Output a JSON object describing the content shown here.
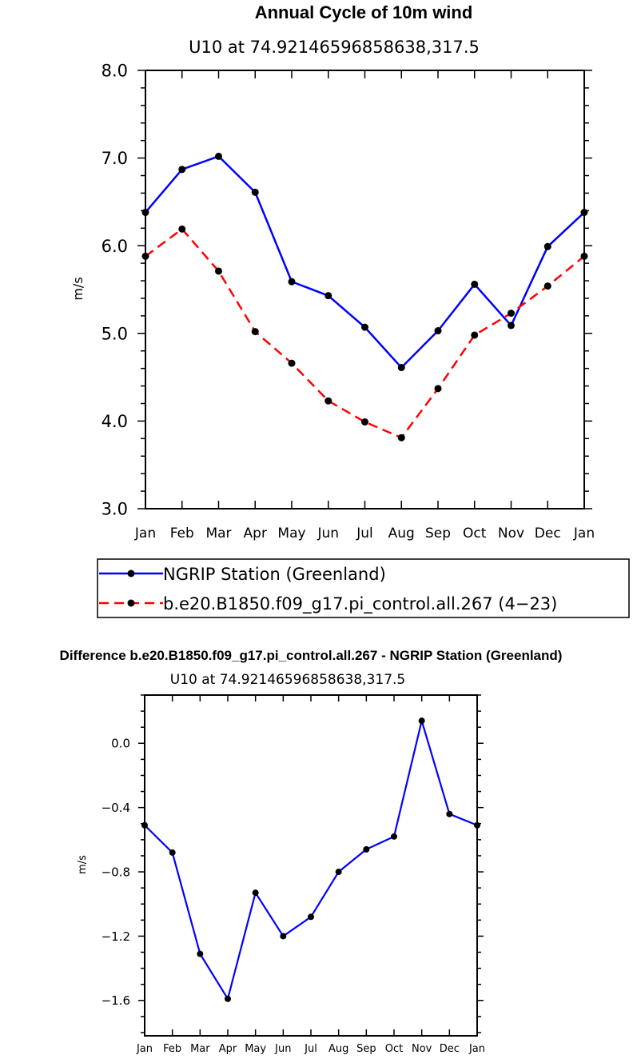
{
  "chart_data": [
    {
      "type": "line",
      "title": "Annual Cycle of 10m wind",
      "subtitle": "U10 at 74.92146596858638,317.5",
      "ylabel": "m/s",
      "xlabel": "",
      "categories": [
        "Jan",
        "Feb",
        "Mar",
        "Apr",
        "May",
        "Jun",
        "Jul",
        "Aug",
        "Sep",
        "Oct",
        "Nov",
        "Dec",
        "Jan"
      ],
      "ylim": [
        3.0,
        8.0
      ],
      "yticks": [
        3.0,
        4.0,
        5.0,
        6.0,
        7.0,
        8.0
      ],
      "ytick_labels": [
        "3.0",
        "4.0",
        "5.0",
        "6.0",
        "7.0",
        "8.0"
      ],
      "series": [
        {
          "name": "NGRIP Station (Greenland)",
          "color": "#0000ff",
          "dash": "solid",
          "values": [
            6.38,
            6.87,
            7.02,
            6.61,
            5.59,
            5.43,
            5.07,
            4.61,
            5.03,
            5.56,
            5.09,
            5.99,
            6.38
          ]
        },
        {
          "name": "b.e20.B1850.f09_g17.pi_control.all.267 (4−23)",
          "color": "#ff0000",
          "dash": "dashed",
          "values": [
            5.88,
            6.19,
            5.71,
            5.02,
            4.66,
            4.23,
            3.99,
            3.81,
            4.37,
            4.98,
            5.23,
            5.54,
            5.88
          ]
        }
      ],
      "legend": "below"
    },
    {
      "type": "line",
      "title": "Difference b.e20.B1850.f09_g17.pi_control.all.267 - NGRIP Station (Greenland)",
      "subtitle": "U10 at 74.92146596858638,317.5",
      "ylabel": "m/s",
      "xlabel": "",
      "categories": [
        "Jan",
        "Feb",
        "Mar",
        "Apr",
        "May",
        "Jun",
        "Jul",
        "Aug",
        "Sep",
        "Oct",
        "Nov",
        "Dec",
        "Jan"
      ],
      "ylim": [
        -1.82,
        0.3
      ],
      "yticks": [
        -1.6,
        -1.2,
        -0.8,
        -0.4,
        0.0
      ],
      "ytick_labels": [
        "-1.6",
        "-1.2",
        "-0.8",
        "-0.4",
        "0.0"
      ],
      "series": [
        {
          "name": "Difference",
          "color": "#0000ff",
          "dash": "solid",
          "values": [
            -0.51,
            -0.68,
            -1.31,
            -1.59,
            -0.93,
            -1.2,
            -1.08,
            -0.8,
            -0.66,
            -0.58,
            0.14,
            -0.44,
            -0.51
          ]
        }
      ]
    }
  ]
}
